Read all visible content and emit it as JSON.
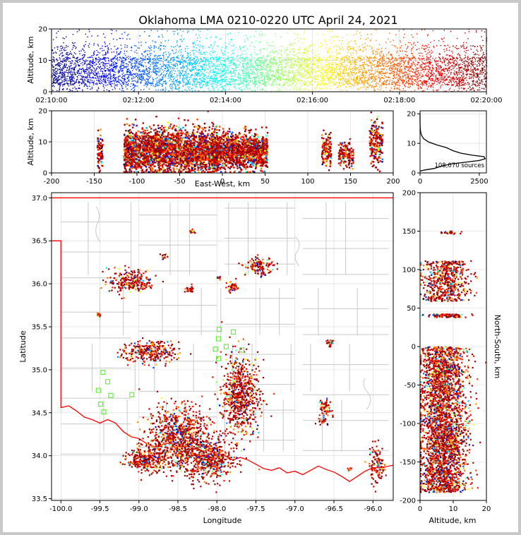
{
  "chart_data": [
    {
      "type": "scatter",
      "panel": "time-altitude",
      "title": "Oklahoma LMA 0210-0220 UTC April 24, 2021",
      "xlabel": "",
      "ylabel": "Altitude, km",
      "x_ticks": [
        "02:10:00",
        "02:12:00",
        "02:14:00",
        "02:16:00",
        "02:18:00",
        "02:20:00"
      ],
      "y_ticks": [
        0,
        10,
        20
      ],
      "xlim": [
        "02:10:00",
        "02:20:00"
      ],
      "ylim": [
        0,
        20
      ],
      "color_by": "time",
      "colormap": [
        "#00007f",
        "#0000ff",
        "#007fff",
        "#00ffff",
        "#7fff7f",
        "#ffff00",
        "#ff7f00",
        "#ff0000",
        "#7f0000"
      ],
      "grid": true
    },
    {
      "type": "scatter",
      "panel": "east-west-altitude",
      "xlabel": "East-West, km",
      "ylabel": "Altitude, km",
      "x_ticks": [
        -200,
        -150,
        -100,
        -50,
        0,
        50,
        100,
        150,
        200
      ],
      "y_ticks": [
        0,
        10,
        20
      ],
      "xlim": [
        -200,
        200
      ],
      "ylim": [
        0,
        20
      ],
      "clusters": [
        {
          "x": -143,
          "spread_x": 3,
          "alt": 7,
          "spread_alt": 4
        },
        {
          "x": -60,
          "spread_x": 50,
          "alt": 7,
          "spread_alt": 5
        },
        {
          "x": 20,
          "spread_x": 30,
          "alt": 7,
          "spread_alt": 4
        },
        {
          "x": 122,
          "spread_x": 5,
          "alt": 7,
          "spread_alt": 4
        },
        {
          "x": 145,
          "spread_x": 8,
          "alt": 6,
          "spread_alt": 3
        },
        {
          "x": 180,
          "spread_x": 7,
          "alt": 10,
          "spread_alt": 5
        }
      ]
    },
    {
      "type": "line",
      "panel": "altitude-histogram",
      "annotation": "108,070 sources",
      "x_ticks": [
        0,
        2500
      ],
      "y_ticks": [
        0,
        10,
        20
      ],
      "xlim": [
        0,
        2800
      ],
      "ylim": [
        0,
        21
      ],
      "profile": [
        [
          0,
          0.6
        ],
        [
          200,
          1.0
        ],
        [
          600,
          1.5
        ],
        [
          900,
          2.3
        ],
        [
          1300,
          3.0
        ],
        [
          1900,
          3.6
        ],
        [
          2500,
          4.2
        ],
        [
          2750,
          4.8
        ],
        [
          2700,
          5.5
        ],
        [
          2200,
          6.0
        ],
        [
          1700,
          6.7
        ],
        [
          1400,
          7.5
        ],
        [
          1100,
          8.6
        ],
        [
          700,
          9.5
        ],
        [
          350,
          10.5
        ],
        [
          150,
          11.6
        ],
        [
          60,
          12.8
        ],
        [
          20,
          14.0
        ],
        [
          5,
          15.5
        ],
        [
          0,
          17.0
        ],
        [
          0,
          20
        ]
      ]
    },
    {
      "type": "scatter",
      "panel": "plan-view",
      "xlabel": "Longitude",
      "ylabel": "Latitude",
      "x_ticks": [
        -100.0,
        -99.5,
        -99.0,
        -98.5,
        -98.0,
        -97.5,
        -97.0,
        -96.5,
        -96.0
      ],
      "y_ticks": [
        33.5,
        34.0,
        34.5,
        35.0,
        35.5,
        36.0,
        36.5,
        37.0
      ],
      "xlim": [
        -100.12,
        -95.74
      ],
      "ylim": [
        33.48,
        37.06
      ],
      "state_border_color": "#ff0000",
      "county_color": "#c8c8c8",
      "station_color": "#66ee44",
      "stations": [
        [
          -97.97,
          35.47
        ],
        [
          -97.79,
          35.44
        ],
        [
          -97.98,
          35.36
        ],
        [
          -97.88,
          35.27
        ],
        [
          -98.02,
          35.24
        ],
        [
          -97.68,
          35.23
        ],
        [
          -97.98,
          35.13
        ],
        [
          -99.46,
          34.97
        ],
        [
          -99.4,
          34.86
        ],
        [
          -99.52,
          34.76
        ],
        [
          -99.36,
          34.7
        ],
        [
          -99.09,
          34.71
        ],
        [
          -99.49,
          34.6
        ],
        [
          -99.45,
          34.51
        ]
      ],
      "clusters": [
        {
          "lon": -98.5,
          "lat": 34.2,
          "slon": 0.35,
          "slat": 0.3,
          "n": 900
        },
        {
          "lon": -97.7,
          "lat": 34.7,
          "slon": 0.2,
          "slat": 0.4,
          "n": 700
        },
        {
          "lon": -98.1,
          "lat": 33.95,
          "slon": 0.25,
          "slat": 0.2,
          "n": 500
        },
        {
          "lon": -98.9,
          "lat": 33.95,
          "slon": 0.2,
          "slat": 0.12,
          "n": 300
        },
        {
          "lon": -98.85,
          "lat": 35.2,
          "slon": 0.3,
          "slat": 0.1,
          "n": 300
        },
        {
          "lon": -99.1,
          "lat": 36.03,
          "slon": 0.25,
          "slat": 0.12,
          "n": 250
        },
        {
          "lon": -97.45,
          "lat": 36.2,
          "slon": 0.15,
          "slat": 0.08,
          "n": 120
        },
        {
          "lon": -97.8,
          "lat": 35.96,
          "slon": 0.06,
          "slat": 0.05,
          "n": 40
        },
        {
          "lon": -98.33,
          "lat": 35.93,
          "slon": 0.03,
          "slat": 0.03,
          "n": 20
        },
        {
          "lon": -99.52,
          "lat": 35.64,
          "slon": 0.02,
          "slat": 0.02,
          "n": 20
        },
        {
          "lon": -96.6,
          "lat": 34.55,
          "slon": 0.06,
          "slat": 0.08,
          "n": 60
        },
        {
          "lon": -96.55,
          "lat": 35.32,
          "slon": 0.04,
          "slat": 0.04,
          "n": 25
        },
        {
          "lon": -95.95,
          "lat": 33.9,
          "slon": 0.08,
          "slat": 0.18,
          "n": 120
        },
        {
          "lon": -96.3,
          "lat": 33.85,
          "slon": 0.03,
          "slat": 0.02,
          "n": 12
        },
        {
          "lon": -98.31,
          "lat": 36.61,
          "slon": 0.03,
          "slat": 0.02,
          "n": 15
        },
        {
          "lon": -98.67,
          "lat": 36.32,
          "slon": 0.04,
          "slat": 0.03,
          "n": 12
        },
        {
          "lon": -98.38,
          "lat": 35.94,
          "slon": 0.03,
          "slat": 0.03,
          "n": 10
        },
        {
          "lon": -97.97,
          "lat": 36.06,
          "slon": 0.03,
          "slat": 0.02,
          "n": 10
        },
        {
          "lon": -96.65,
          "lat": 34.4,
          "slon": 0.05,
          "slat": 0.05,
          "n": 20
        }
      ]
    },
    {
      "type": "scatter",
      "panel": "altitude-north-south",
      "xlabel": "Altitude, km",
      "ylabel": "North-South, km",
      "x_ticks": [
        0,
        10,
        20
      ],
      "y_ticks": [
        -200,
        -150,
        -100,
        -50,
        0,
        50,
        100,
        150,
        200
      ],
      "xlim": [
        0,
        20
      ],
      "ylim": [
        -200,
        200
      ],
      "clusters": [
        {
          "y": -95,
          "spread_y": 90,
          "alt": 7,
          "spread_alt": 5
        },
        {
          "y": 85,
          "spread_y": 25,
          "alt": 8,
          "spread_alt": 5
        },
        {
          "y": 40,
          "spread_y": 2,
          "alt": 8,
          "spread_alt": 4
        },
        {
          "y": 148,
          "spread_y": 2,
          "alt": 9,
          "spread_alt": 2
        }
      ]
    }
  ]
}
